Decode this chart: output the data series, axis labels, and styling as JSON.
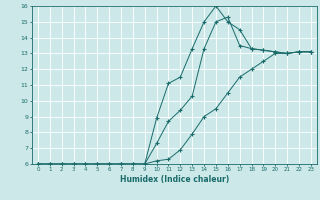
{
  "xlabel": "Humidex (Indice chaleur)",
  "background_color": "#cce8e8",
  "grid_color": "#ffffff",
  "line_color": "#1a6b6b",
  "xlim": [
    -0.5,
    23.5
  ],
  "ylim": [
    6,
    16
  ],
  "xticks": [
    0,
    1,
    2,
    3,
    4,
    5,
    6,
    7,
    8,
    9,
    10,
    11,
    12,
    13,
    14,
    15,
    16,
    17,
    18,
    19,
    20,
    21,
    22,
    23
  ],
  "yticks": [
    6,
    7,
    8,
    9,
    10,
    11,
    12,
    13,
    14,
    15,
    16
  ],
  "line1_x": [
    0,
    1,
    2,
    3,
    4,
    5,
    6,
    7,
    8,
    9,
    10,
    11,
    12,
    13,
    14,
    15,
    16,
    17,
    18,
    19,
    20,
    21,
    22,
    23
  ],
  "line1_y": [
    6,
    6,
    6,
    6,
    6,
    6,
    6,
    6,
    6,
    6,
    8.9,
    11.1,
    11.5,
    13.3,
    15.0,
    16.0,
    15.0,
    14.5,
    13.3,
    13.2,
    13.1,
    13.0,
    13.1,
    13.1
  ],
  "line2_x": [
    0,
    1,
    2,
    3,
    4,
    5,
    6,
    7,
    8,
    9,
    10,
    11,
    12,
    13,
    14,
    15,
    16,
    17,
    18,
    19,
    20,
    21,
    22,
    23
  ],
  "line2_y": [
    6,
    6,
    6,
    6,
    6,
    6,
    6,
    6,
    6,
    6,
    7.3,
    8.7,
    9.4,
    10.3,
    13.3,
    15.0,
    15.3,
    13.5,
    13.3,
    13.2,
    13.1,
    13.0,
    13.1,
    13.1
  ],
  "line3_x": [
    0,
    1,
    2,
    3,
    4,
    5,
    6,
    7,
    8,
    9,
    10,
    11,
    12,
    13,
    14,
    15,
    16,
    17,
    18,
    19,
    20,
    21,
    22,
    23
  ],
  "line3_y": [
    6,
    6,
    6,
    6,
    6,
    6,
    6,
    6,
    6,
    6,
    6.2,
    6.3,
    6.9,
    7.9,
    9.0,
    9.5,
    10.5,
    11.5,
    12.0,
    12.5,
    13.0,
    13.0,
    13.1,
    13.1
  ]
}
